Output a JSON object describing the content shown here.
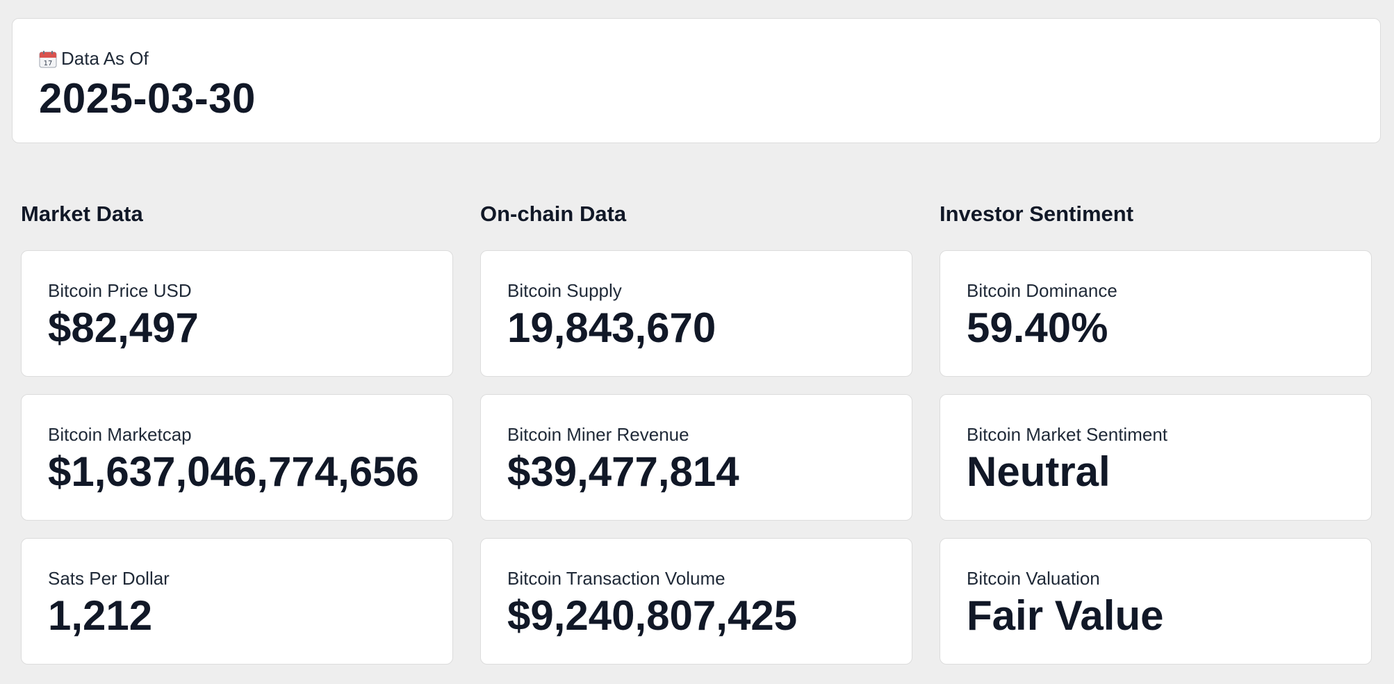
{
  "header": {
    "icon": "calendar-icon",
    "label": "Data As Of",
    "date": "2025-03-30"
  },
  "sections": [
    {
      "title": "Market Data",
      "metrics": [
        {
          "label": "Bitcoin Price USD",
          "value": "$82,497"
        },
        {
          "label": "Bitcoin Marketcap",
          "value": "$1,637,046,774,656"
        },
        {
          "label": "Sats Per Dollar",
          "value": "1,212"
        }
      ]
    },
    {
      "title": "On-chain Data",
      "metrics": [
        {
          "label": "Bitcoin Supply",
          "value": "19,843,670"
        },
        {
          "label": "Bitcoin Miner Revenue",
          "value": "$39,477,814"
        },
        {
          "label": "Bitcoin Transaction Volume",
          "value": "$9,240,807,425"
        }
      ]
    },
    {
      "title": "Investor Sentiment",
      "metrics": [
        {
          "label": "Bitcoin Dominance",
          "value": "59.40%"
        },
        {
          "label": "Bitcoin Market Sentiment",
          "value": "Neutral"
        },
        {
          "label": "Bitcoin Valuation",
          "value": "Fair Value"
        }
      ]
    }
  ],
  "colors": {
    "background": "#eeeeee",
    "card": "#ffffff",
    "text": "#111827",
    "calendar_red": "#d9534f"
  }
}
